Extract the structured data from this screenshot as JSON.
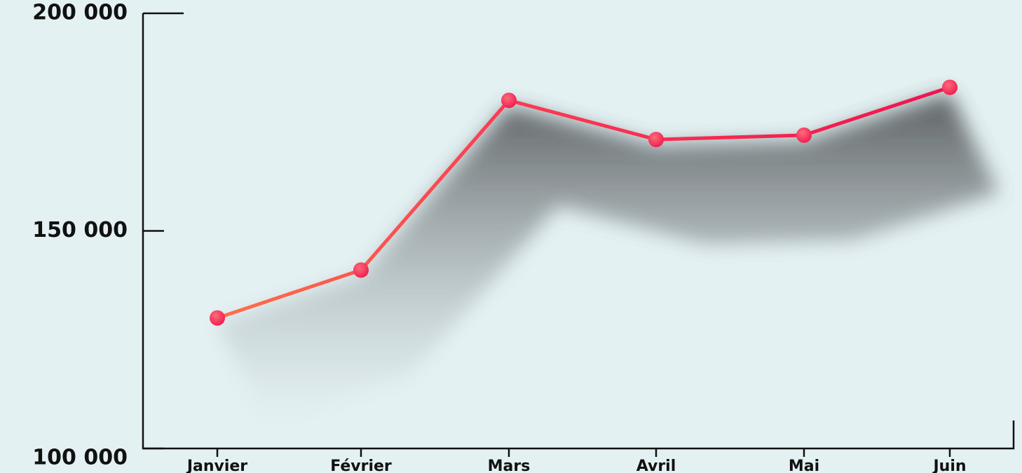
{
  "chart_data": {
    "type": "line",
    "categories": [
      "Janvier",
      "Février",
      "Mars",
      "Avril",
      "Mai",
      "Juin"
    ],
    "values": [
      130000,
      141000,
      180000,
      171000,
      172000,
      183000
    ],
    "color": "#f5204f",
    "ylim": [
      100000,
      200000
    ],
    "yticks": [
      {
        "value": 100000,
        "label": "100 000"
      },
      {
        "value": 150000,
        "label": "150 000"
      },
      {
        "value": 200000,
        "label": "200 000"
      }
    ]
  }
}
